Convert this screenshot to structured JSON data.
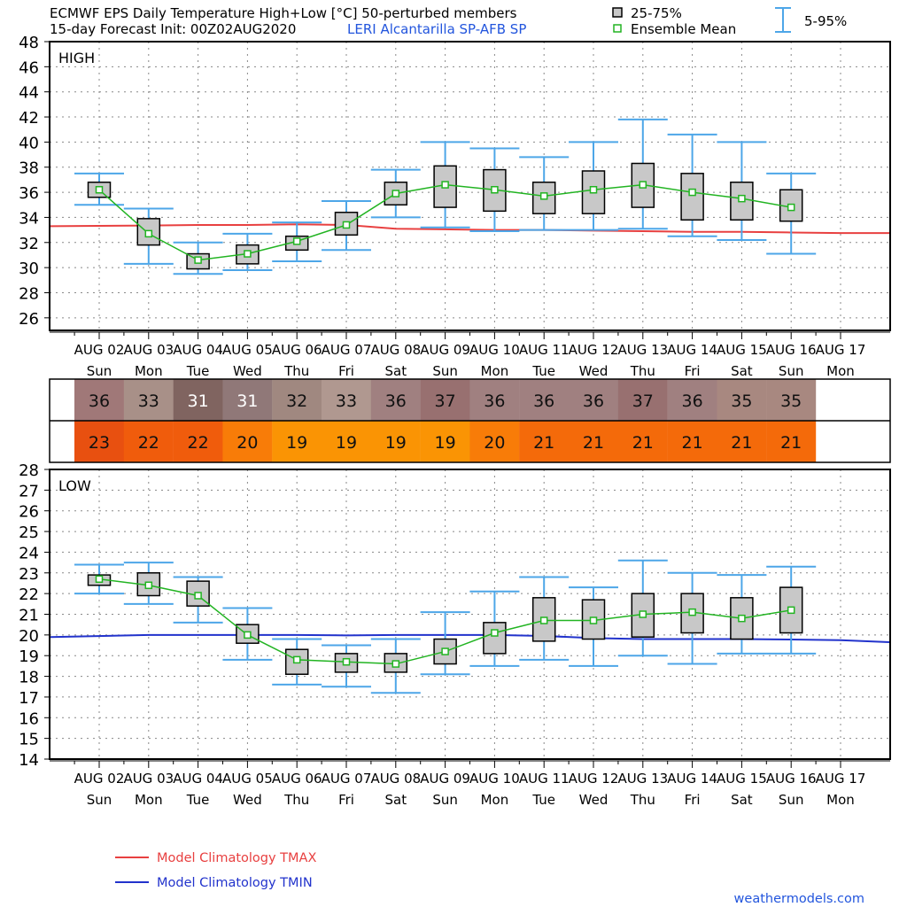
{
  "header": {
    "title_line1": "ECMWF EPS Daily Temperature High+Low [°C]  50-perturbed members",
    "title_line2": "15-day Forecast Init: 00Z02AUG2020",
    "station": "LERI  Alcantarilla SP-AFB  SP"
  },
  "legend": {
    "box_label": "25-75%",
    "mean_label": "Ensemble Mean",
    "whisker_label": "5-95%",
    "tmax_label": "Model Climatology TMAX",
    "tmin_label": "Model Climatology TMIN"
  },
  "credit": "weathermodels.com",
  "colors": {
    "box_fill": "#c8c8c8",
    "whisker": "#4da6e8",
    "mean": "#22b422",
    "tmax_clim": "#e84040",
    "tmin_clim": "#2233cc",
    "station_text": "#2255dd"
  },
  "dates": [
    "AUG 02",
    "AUG 03",
    "AUG 04",
    "AUG 05",
    "AUG 06",
    "AUG 07",
    "AUG 08",
    "AUG 09",
    "AUG 10",
    "AUG 11",
    "AUG 12",
    "AUG 13",
    "AUG 14",
    "AUG 15",
    "AUG 16",
    "AUG 17"
  ],
  "weekdays": [
    "Sun",
    "Mon",
    "Tue",
    "Wed",
    "Thu",
    "Fri",
    "Sat",
    "Sun",
    "Mon",
    "Tue",
    "Wed",
    "Thu",
    "Fri",
    "Sat",
    "Sun",
    "Mon"
  ],
  "summary_table": {
    "high_values": [
      36,
      33,
      31,
      31,
      32,
      33,
      36,
      37,
      36,
      36,
      36,
      37,
      36,
      35,
      35
    ],
    "high_colors": [
      "#a07878",
      "#a89088",
      "#806460",
      "#907878",
      "#a08880",
      "#b09890",
      "#a08080",
      "#987070",
      "#a08080",
      "#a08080",
      "#a08080",
      "#987070",
      "#a08080",
      "#a88880",
      "#a88880"
    ],
    "low_values": [
      23,
      22,
      22,
      20,
      19,
      19,
      19,
      19,
      20,
      21,
      21,
      21,
      21,
      21,
      21
    ],
    "low_colors": [
      "#e85010",
      "#f05c0c",
      "#f05c0c",
      "#f87c08",
      "#fa9404",
      "#fa9404",
      "#fa9404",
      "#fa9404",
      "#f87c08",
      "#f46a0a",
      "#f46a0a",
      "#f46a0a",
      "#f46a0a",
      "#f46a0a",
      "#f46a0a"
    ]
  },
  "chart_data": [
    {
      "type": "box",
      "panel_label": "HIGH",
      "ylim": [
        25,
        48
      ],
      "yticks": [
        26,
        28,
        30,
        32,
        34,
        36,
        38,
        40,
        42,
        44,
        46,
        48
      ],
      "categories": [
        "AUG 02",
        "AUG 03",
        "AUG 04",
        "AUG 05",
        "AUG 06",
        "AUG 07",
        "AUG 08",
        "AUG 09",
        "AUG 10",
        "AUG 11",
        "AUG 12",
        "AUG 13",
        "AUG 14",
        "AUG 15",
        "AUG 16"
      ],
      "p5": [
        35.0,
        30.3,
        29.5,
        29.8,
        30.5,
        31.4,
        34.0,
        33.2,
        32.9,
        33.0,
        33.0,
        33.1,
        32.5,
        32.2,
        31.1
      ],
      "p25": [
        35.6,
        31.8,
        29.9,
        30.3,
        31.4,
        32.6,
        35.0,
        34.8,
        34.5,
        34.3,
        34.3,
        34.8,
        33.8,
        33.8,
        33.7
      ],
      "p75": [
        36.8,
        33.9,
        31.1,
        31.8,
        32.5,
        34.4,
        36.8,
        38.1,
        37.8,
        36.8,
        37.7,
        38.3,
        37.5,
        36.8,
        36.2
      ],
      "p95": [
        37.5,
        34.7,
        32.0,
        32.7,
        33.6,
        35.3,
        37.8,
        40.0,
        39.5,
        38.8,
        40.0,
        41.8,
        40.6,
        40.0,
        37.5
      ],
      "mean": [
        36.2,
        32.7,
        30.6,
        31.1,
        32.1,
        33.4,
        35.9,
        36.6,
        36.2,
        35.7,
        36.2,
        36.6,
        36.0,
        35.5,
        34.8
      ],
      "climatology": {
        "x": [
          0.05,
          1,
          2,
          3,
          4,
          5,
          6,
          7,
          8,
          9,
          10,
          11,
          12,
          13,
          14,
          15,
          15.95
        ],
        "y": [
          33.3,
          33.35,
          33.4,
          33.4,
          33.45,
          33.4,
          33.1,
          33.05,
          33.0,
          33.0,
          32.95,
          32.9,
          32.85,
          32.85,
          32.8,
          32.75,
          32.75
        ]
      }
    },
    {
      "type": "box",
      "panel_label": "LOW",
      "ylim": [
        14,
        28
      ],
      "yticks": [
        14,
        15,
        16,
        17,
        18,
        19,
        20,
        21,
        22,
        23,
        24,
        25,
        26,
        27,
        28
      ],
      "categories": [
        "AUG 02",
        "AUG 03",
        "AUG 04",
        "AUG 05",
        "AUG 06",
        "AUG 07",
        "AUG 08",
        "AUG 09",
        "AUG 10",
        "AUG 11",
        "AUG 12",
        "AUG 13",
        "AUG 14",
        "AUG 15",
        "AUG 16"
      ],
      "p5": [
        22.0,
        21.5,
        20.6,
        18.8,
        17.6,
        17.5,
        17.2,
        18.1,
        18.5,
        18.8,
        18.5,
        19.0,
        18.6,
        19.1,
        19.1
      ],
      "p25": [
        22.4,
        21.9,
        21.4,
        19.6,
        18.1,
        18.2,
        18.2,
        18.6,
        19.1,
        19.7,
        19.8,
        19.9,
        20.1,
        19.8,
        20.1
      ],
      "p75": [
        22.9,
        23.0,
        22.6,
        20.5,
        19.3,
        19.1,
        19.1,
        19.8,
        20.6,
        21.8,
        21.7,
        22.0,
        22.0,
        21.8,
        22.3
      ],
      "p95": [
        23.4,
        23.5,
        22.8,
        21.3,
        19.8,
        19.5,
        19.8,
        21.1,
        22.1,
        22.8,
        22.3,
        23.6,
        23.0,
        22.9,
        23.3
      ],
      "mean": [
        22.7,
        22.4,
        21.9,
        20.0,
        18.8,
        18.7,
        18.6,
        19.2,
        20.1,
        20.7,
        20.7,
        21.0,
        21.1,
        20.8,
        21.2
      ],
      "climatology": {
        "x": [
          0.05,
          1,
          2,
          3,
          4,
          5,
          6,
          7,
          8,
          9,
          10,
          11,
          12,
          13,
          14,
          15,
          15.95
        ],
        "y": [
          19.9,
          20.0,
          20.0,
          20.0,
          20.0,
          19.98,
          20.0,
          20.0,
          20.0,
          19.95,
          19.85,
          19.8,
          19.8,
          19.8,
          19.78,
          19.75,
          19.65
        ]
      }
    }
  ]
}
